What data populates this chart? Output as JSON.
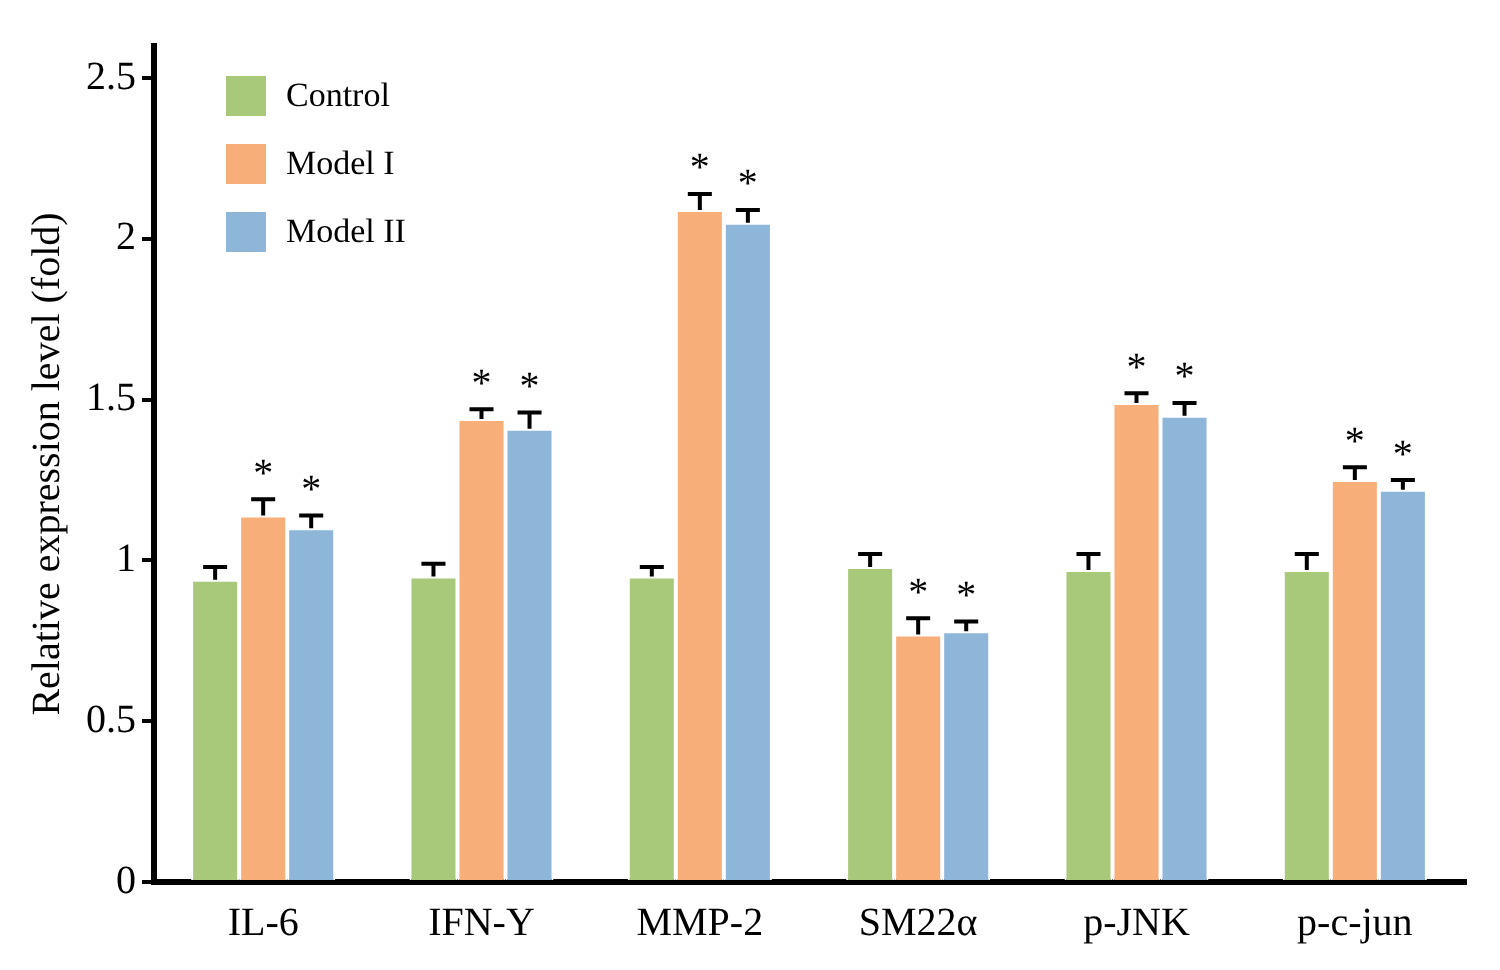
{
  "chart_data": {
    "type": "bar",
    "ylabel": "Relative expression level (fold)",
    "categories": [
      "IL-6",
      "IFN-Y",
      "MMP-2",
      "SM22α",
      "p-JNK",
      "p-c-jun"
    ],
    "series": [
      {
        "name": "Control",
        "color": "#a9c97a",
        "values": [
          0.94,
          0.95,
          0.95,
          0.98,
          0.97,
          0.97
        ],
        "errors": [
          0.04,
          0.04,
          0.03,
          0.04,
          0.05,
          0.05
        ]
      },
      {
        "name": "Model I",
        "color": "#f7ae78",
        "values": [
          1.14,
          1.44,
          2.09,
          0.77,
          1.49,
          1.25
        ],
        "errors": [
          0.05,
          0.03,
          0.05,
          0.05,
          0.03,
          0.04
        ]
      },
      {
        "name": "Model II",
        "color": "#8db6d9",
        "values": [
          1.1,
          1.41,
          2.05,
          0.78,
          1.45,
          1.22
        ],
        "errors": [
          0.04,
          0.05,
          0.04,
          0.03,
          0.04,
          0.03
        ]
      }
    ],
    "annotations": [
      {
        "text": "*",
        "x": "IL-6",
        "y": 1.19
      },
      {
        "text": "*",
        "x": "IL-6",
        "y": 1.14
      },
      {
        "text": "*",
        "x": "IFN-Y",
        "y": 1.47
      },
      {
        "text": "*",
        "x": "IFN-Y",
        "y": 1.46
      },
      {
        "text": "*",
        "x": "MMP-2",
        "y": 2.14
      },
      {
        "text": "*",
        "x": "MMP-2",
        "y": 2.09
      },
      {
        "text": "*",
        "x": "SM22α",
        "y": 0.82
      },
      {
        "text": "*",
        "x": "SM22α",
        "y": 0.81
      },
      {
        "text": "*",
        "x": "p-JNK",
        "y": 1.52
      },
      {
        "text": "*",
        "x": "p-JNK",
        "y": 1.49
      },
      {
        "text": "*",
        "x": "p-c-jun",
        "y": 1.29
      },
      {
        "text": "*",
        "x": "p-c-jun",
        "y": 1.25
      }
    ],
    "ylim": [
      0,
      2.6
    ],
    "yticks": [
      0,
      0.5,
      1,
      1.5,
      2,
      2.5
    ],
    "grid": false,
    "legend": "top left"
  }
}
